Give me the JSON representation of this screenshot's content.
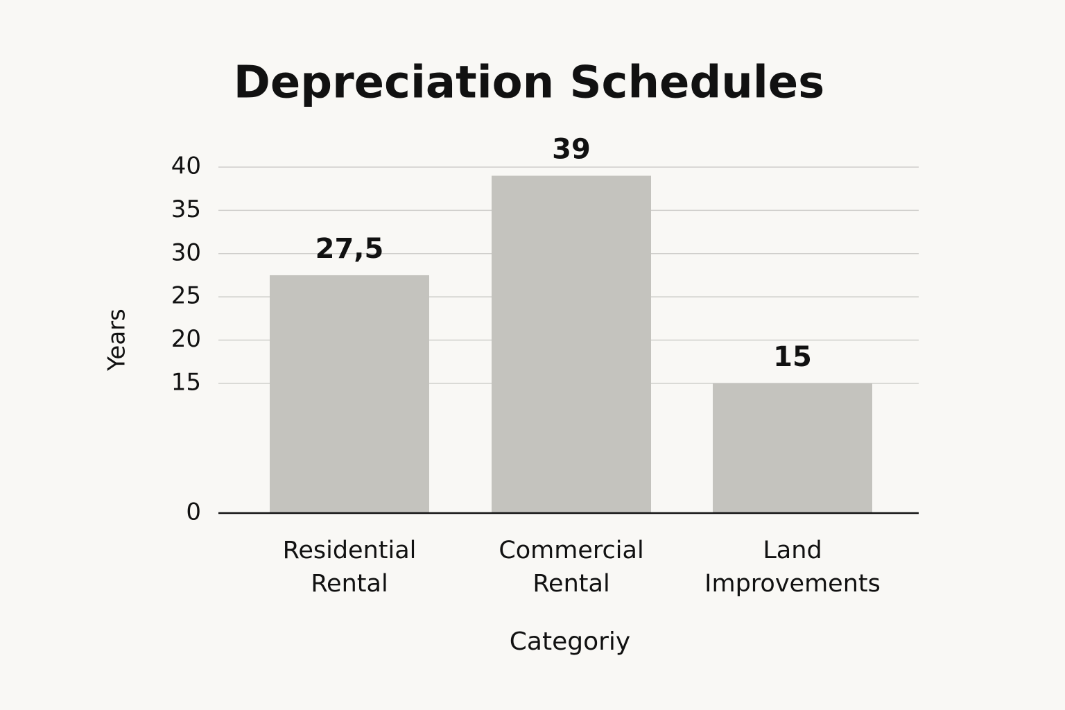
{
  "chart_data": {
    "type": "bar",
    "title": "Depreciation Schedules",
    "x_label": "Categoriy",
    "y_label": "Years",
    "categories": [
      "Residential Rental",
      "Commercial Rental",
      "Land Improvements"
    ],
    "values": [
      27.5,
      39,
      15
    ],
    "value_labels": [
      "27,5",
      "39",
      "15"
    ],
    "color": "#c4c3be",
    "ylim": [
      0,
      40
    ],
    "yticks": [
      0,
      15,
      20,
      25,
      30,
      35,
      40
    ],
    "grid": true
  }
}
